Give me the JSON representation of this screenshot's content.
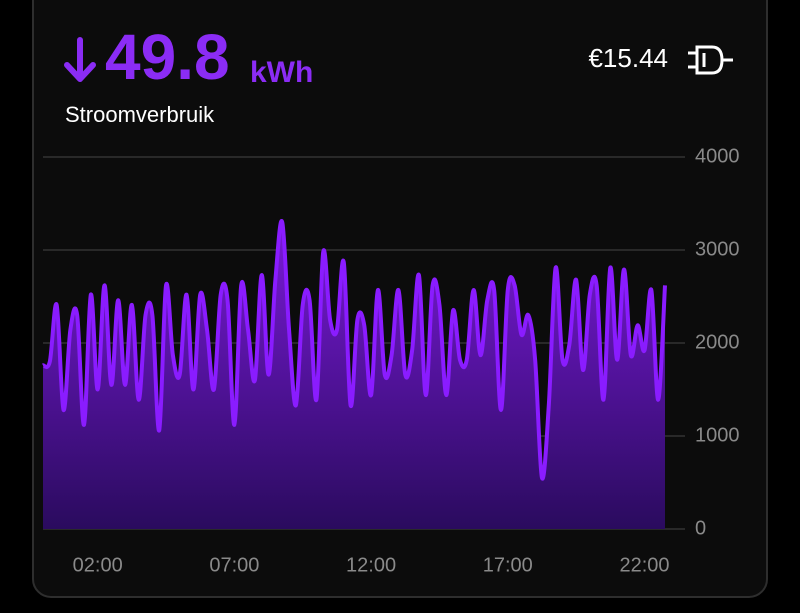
{
  "header": {
    "value": "49.8",
    "unit": "kWh",
    "label": "Stroomverbruik",
    "cost": "€15.44"
  },
  "chart_data": {
    "type": "area",
    "color": "#8a1cff",
    "grid": true,
    "x": [
      0,
      0.25,
      0.5,
      0.75,
      1,
      1.25,
      1.5,
      1.75,
      2,
      2.25,
      2.5,
      2.75,
      3,
      3.25,
      3.5,
      3.75,
      4,
      4.25,
      4.5,
      4.75,
      5,
      5.25,
      5.5,
      5.75,
      6,
      6.25,
      6.5,
      6.75,
      7,
      7.25,
      7.5,
      7.75,
      8,
      8.25,
      8.5,
      8.75,
      9,
      9.25,
      9.5,
      9.75,
      10,
      10.25,
      10.5,
      10.75,
      11,
      11.25,
      11.5,
      11.75,
      12,
      12.25,
      12.5,
      12.75,
      13,
      13.25,
      13.5,
      13.75,
      14,
      14.25,
      14.5,
      14.75,
      15,
      15.25,
      15.5,
      15.75,
      16,
      16.25,
      16.5,
      16.75,
      17,
      17.25,
      17.5,
      17.75,
      18,
      18.25,
      18.5,
      18.75,
      19,
      19.25,
      19.5,
      19.75,
      20,
      20.25,
      20.5,
      20.75,
      21,
      21.25,
      21.5,
      21.75,
      22,
      22.25,
      22.5,
      22.75
    ],
    "values": [
      1760,
      1800,
      2410,
      1280,
      2140,
      2300,
      1120,
      2520,
      1500,
      2620,
      1550,
      2460,
      1550,
      2410,
      1390,
      2300,
      2300,
      1060,
      2620,
      1870,
      1660,
      2520,
      1500,
      2520,
      2140,
      1500,
      2520,
      2460,
      1120,
      2620,
      2140,
      1600,
      2730,
      1660,
      2680,
      3300,
      2140,
      1330,
      2410,
      2460,
      1390,
      2980,
      2250,
      2140,
      2870,
      1330,
      2250,
      2190,
      1440,
      2570,
      1660,
      1870,
      2570,
      1660,
      1920,
      2730,
      1440,
      2620,
      2410,
      1440,
      2350,
      1820,
      1820,
      2570,
      1870,
      2460,
      2570,
      1280,
      2570,
      2620,
      2090,
      2300,
      1820,
      550,
      1330,
      2810,
      1820,
      1980,
      2680,
      1710,
      2520,
      2620,
      1390,
      2810,
      1820,
      2790,
      1870,
      2190,
      1920,
      2570,
      1390,
      2620
    ],
    "xlim": [
      0,
      22.75
    ],
    "xticks": [
      {
        "value": 2,
        "label": "02:00"
      },
      {
        "value": 7,
        "label": "07:00"
      },
      {
        "value": 12,
        "label": "12:00"
      },
      {
        "value": 17,
        "label": "17:00"
      },
      {
        "value": 22,
        "label": "22:00"
      }
    ],
    "ylim": [
      0,
      4000
    ],
    "yticks": [
      0,
      1000,
      2000,
      3000,
      4000
    ]
  }
}
